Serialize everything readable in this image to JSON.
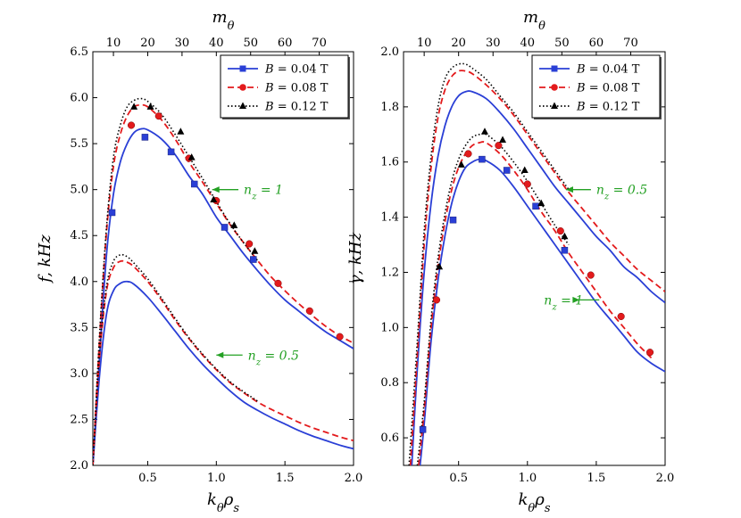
{
  "chart_data": [
    {
      "type": "line",
      "id": "left",
      "title": "",
      "xlabel": "k_θρ_s",
      "ylabel": "f, kHz",
      "top_xlabel": "m_θ",
      "xlim": [
        0.1,
        2.0
      ],
      "ylim": [
        2.0,
        6.5
      ],
      "xticks": [
        0.5,
        1.0,
        1.5,
        2.0
      ],
      "xtick_labels": [
        "0.5",
        "1.0",
        "1.5",
        "2.0"
      ],
      "yticks": [
        2.0,
        2.5,
        3.0,
        3.5,
        4.0,
        4.5,
        5.0,
        5.5,
        6.0,
        6.5
      ],
      "ytick_labels": [
        "2.0",
        "2.5",
        "3.0",
        "3.5",
        "4.0",
        "4.5",
        "5.0",
        "5.5",
        "6.0",
        "6.5"
      ],
      "top_xticks": [
        0.25,
        0.5,
        0.75,
        1.0,
        1.25,
        1.5,
        1.75
      ],
      "top_xtick_labels": [
        "10",
        "20",
        "30",
        "40",
        "50",
        "60",
        "70"
      ],
      "legend": {
        "position": "top-right",
        "entries": [
          {
            "label": "B = 0.04 T",
            "color": "#2a3fd6",
            "style": "solid",
            "marker": "square"
          },
          {
            "label": "B = 0.08 T",
            "color": "#e31a1c",
            "style": "dashed",
            "marker": "circle"
          },
          {
            "label": "B = 0.12 T",
            "color": "#000000",
            "style": "dotted",
            "marker": "triangle"
          }
        ]
      },
      "series": [
        {
          "name": "B = 0.04 T, nz = 1",
          "color": "#2a3fd6",
          "style": "solid",
          "x": [
            0.1,
            0.15,
            0.2,
            0.25,
            0.3,
            0.35,
            0.4,
            0.45,
            0.5,
            0.6,
            0.7,
            0.8,
            0.9,
            1.0,
            1.1,
            1.2,
            1.3,
            1.4,
            1.5,
            1.6,
            1.7,
            1.8,
            1.9,
            2.0
          ],
          "y": [
            2.0,
            3.2,
            4.3,
            4.95,
            5.3,
            5.5,
            5.62,
            5.66,
            5.65,
            5.55,
            5.38,
            5.15,
            4.95,
            4.7,
            4.5,
            4.3,
            4.12,
            3.95,
            3.8,
            3.68,
            3.56,
            3.45,
            3.36,
            3.27
          ]
        },
        {
          "name": "B = 0.08 T, nz = 1",
          "color": "#e31a1c",
          "style": "dashed",
          "x": [
            0.1,
            0.15,
            0.2,
            0.25,
            0.3,
            0.35,
            0.4,
            0.45,
            0.5,
            0.6,
            0.7,
            0.8,
            0.9,
            1.0,
            1.1,
            1.2,
            1.3,
            1.4,
            1.5,
            1.6,
            1.7,
            1.8,
            1.9,
            2.0
          ],
          "y": [
            2.0,
            3.4,
            4.55,
            5.25,
            5.6,
            5.8,
            5.9,
            5.92,
            5.9,
            5.76,
            5.55,
            5.3,
            5.08,
            4.85,
            4.62,
            4.42,
            4.23,
            4.05,
            3.9,
            3.76,
            3.63,
            3.51,
            3.41,
            3.33
          ]
        },
        {
          "name": "B = 0.12 T, nz = 1",
          "color": "#000000",
          "style": "dotted",
          "x": [
            0.1,
            0.15,
            0.2,
            0.25,
            0.3,
            0.35,
            0.4,
            0.45,
            0.5,
            0.6,
            0.7,
            0.8,
            0.9,
            1.0,
            1.1,
            1.2,
            1.3
          ],
          "y": [
            2.0,
            3.45,
            4.6,
            5.35,
            5.7,
            5.9,
            5.97,
            5.99,
            5.96,
            5.82,
            5.6,
            5.36,
            5.12,
            4.87,
            4.63,
            4.42,
            4.23
          ]
        },
        {
          "name": "B = 0.04 T, nz = 0.5",
          "color": "#2a3fd6",
          "style": "solid",
          "x": [
            0.1,
            0.15,
            0.2,
            0.25,
            0.3,
            0.35,
            0.4,
            0.5,
            0.6,
            0.7,
            0.8,
            0.9,
            1.0,
            1.1,
            1.2,
            1.3,
            1.4,
            1.5,
            1.6,
            1.7,
            1.8,
            1.9,
            2.0
          ],
          "y": [
            2.0,
            3.0,
            3.65,
            3.9,
            3.98,
            4.0,
            3.97,
            3.83,
            3.65,
            3.46,
            3.27,
            3.1,
            2.95,
            2.81,
            2.69,
            2.6,
            2.52,
            2.45,
            2.38,
            2.32,
            2.27,
            2.22,
            2.18
          ]
        },
        {
          "name": "B = 0.08 T, nz = 0.5",
          "color": "#e31a1c",
          "style": "dashed",
          "x": [
            0.1,
            0.15,
            0.2,
            0.25,
            0.3,
            0.35,
            0.4,
            0.5,
            0.6,
            0.7,
            0.8,
            0.9,
            1.0,
            1.1,
            1.2,
            1.3,
            1.4,
            1.5,
            1.6,
            1.7,
            1.8,
            1.9,
            2.0
          ],
          "y": [
            2.0,
            3.2,
            3.9,
            4.15,
            4.22,
            4.21,
            4.16,
            4.0,
            3.8,
            3.58,
            3.38,
            3.2,
            3.04,
            2.9,
            2.79,
            2.69,
            2.61,
            2.54,
            2.47,
            2.41,
            2.36,
            2.31,
            2.27
          ]
        },
        {
          "name": "B = 0.12 T, nz = 0.5",
          "color": "#000000",
          "style": "dotted",
          "x": [
            0.1,
            0.15,
            0.2,
            0.25,
            0.3,
            0.35,
            0.4,
            0.5,
            0.6,
            0.7,
            0.8,
            0.9,
            1.0,
            1.1,
            1.2,
            1.3
          ],
          "y": [
            2.0,
            3.25,
            3.95,
            4.22,
            4.29,
            4.27,
            4.2,
            4.03,
            3.82,
            3.6,
            3.39,
            3.21,
            3.05,
            2.91,
            2.8,
            2.7
          ]
        }
      ],
      "markers": [
        {
          "series": "B = 0.04 T",
          "marker": "square",
          "color": "#2a3fd6",
          "x": [
            0.24,
            0.48,
            0.67,
            0.84,
            1.06,
            1.27
          ],
          "y": [
            4.75,
            5.57,
            5.41,
            5.06,
            4.59,
            4.24
          ]
        },
        {
          "series": "B = 0.08 T",
          "marker": "circle",
          "color": "#e31a1c",
          "x": [
            0.38,
            0.58,
            0.8,
            1.0,
            1.24,
            1.45,
            1.68,
            1.9
          ],
          "y": [
            5.7,
            5.8,
            5.34,
            4.88,
            4.41,
            3.98,
            3.68,
            3.4
          ]
        },
        {
          "series": "B = 0.12 T",
          "marker": "triangle",
          "color": "#000000",
          "x": [
            0.4,
            0.52,
            0.74,
            0.82,
            0.98,
            1.13,
            1.28
          ],
          "y": [
            5.9,
            5.9,
            5.63,
            5.35,
            4.89,
            4.61,
            4.33
          ]
        }
      ],
      "annotations": [
        {
          "text": "n_z = 1",
          "color": "#23a023",
          "arrow_to": [
            0.97,
            5.0
          ],
          "text_at": [
            1.2,
            5.0
          ]
        },
        {
          "text": "n_z = 0.5",
          "color": "#23a023",
          "arrow_to": [
            1.0,
            3.2
          ],
          "text_at": [
            1.23,
            3.2
          ]
        }
      ]
    },
    {
      "type": "line",
      "id": "right",
      "title": "",
      "xlabel": "k_θρ_s",
      "ylabel": "γ, kHz",
      "top_xlabel": "m_θ",
      "xlim": [
        0.1,
        2.0
      ],
      "ylim": [
        0.5,
        2.0
      ],
      "xticks": [
        0.5,
        1.0,
        1.5,
        2.0
      ],
      "xtick_labels": [
        "0.5",
        "1.0",
        "1.5",
        "2.0"
      ],
      "yticks": [
        0.6,
        0.8,
        1.0,
        1.2,
        1.4,
        1.6,
        1.8,
        2.0
      ],
      "ytick_labels": [
        "0.6",
        "0.8",
        "1.0",
        "1.2",
        "1.4",
        "1.6",
        "1.8",
        "2.0"
      ],
      "top_xticks": [
        0.25,
        0.5,
        0.75,
        1.0,
        1.25,
        1.5,
        1.75
      ],
      "top_xtick_labels": [
        "10",
        "20",
        "30",
        "40",
        "50",
        "60",
        "70"
      ],
      "legend": {
        "position": "top-right",
        "entries": [
          {
            "label": "B = 0.04 T",
            "color": "#2a3fd6",
            "style": "solid",
            "marker": "square"
          },
          {
            "label": "B = 0.08 T",
            "color": "#e31a1c",
            "style": "dashed",
            "marker": "circle"
          },
          {
            "label": "B = 0.12 T",
            "color": "#000000",
            "style": "dotted",
            "marker": "triangle"
          }
        ]
      },
      "series": [
        {
          "name": "B = 0.04 T, nz = 0.5",
          "color": "#2a3fd6",
          "style": "solid",
          "x": [
            0.16,
            0.2,
            0.25,
            0.3,
            0.35,
            0.4,
            0.45,
            0.5,
            0.55,
            0.6,
            0.7,
            0.8,
            0.9,
            1.0,
            1.1,
            1.2,
            1.3,
            1.4,
            1.5,
            1.6,
            1.7,
            1.8,
            1.9,
            2.0
          ],
          "y": [
            0.5,
            0.85,
            1.2,
            1.45,
            1.62,
            1.73,
            1.8,
            1.84,
            1.855,
            1.855,
            1.83,
            1.78,
            1.72,
            1.65,
            1.58,
            1.51,
            1.45,
            1.39,
            1.33,
            1.28,
            1.22,
            1.18,
            1.13,
            1.09
          ]
        },
        {
          "name": "B = 0.08 T, nz = 0.5",
          "color": "#e31a1c",
          "style": "dashed",
          "x": [
            0.15,
            0.2,
            0.25,
            0.3,
            0.35,
            0.4,
            0.45,
            0.5,
            0.55,
            0.6,
            0.7,
            0.8,
            0.9,
            1.0,
            1.1,
            1.2,
            1.3,
            1.4,
            1.5,
            1.6,
            1.7,
            1.8,
            1.9,
            2.0
          ],
          "y": [
            0.5,
            0.9,
            1.3,
            1.58,
            1.76,
            1.86,
            1.91,
            1.93,
            1.93,
            1.92,
            1.88,
            1.83,
            1.77,
            1.7,
            1.63,
            1.56,
            1.49,
            1.43,
            1.37,
            1.31,
            1.26,
            1.21,
            1.17,
            1.13
          ]
        },
        {
          "name": "B = 0.12 T, nz = 0.5",
          "color": "#000000",
          "style": "dotted",
          "x": [
            0.14,
            0.2,
            0.25,
            0.3,
            0.35,
            0.4,
            0.45,
            0.5,
            0.55,
            0.6,
            0.7,
            0.8,
            0.9,
            1.0,
            1.1,
            1.2,
            1.3
          ],
          "y": [
            0.5,
            0.95,
            1.35,
            1.62,
            1.8,
            1.9,
            1.94,
            1.955,
            1.955,
            1.94,
            1.9,
            1.84,
            1.78,
            1.71,
            1.64,
            1.57,
            1.5
          ]
        },
        {
          "name": "B = 0.04 T, nz = 1",
          "color": "#2a3fd6",
          "style": "solid",
          "x": [
            0.22,
            0.25,
            0.3,
            0.35,
            0.4,
            0.45,
            0.5,
            0.55,
            0.6,
            0.65,
            0.7,
            0.8,
            0.9,
            1.0,
            1.1,
            1.2,
            1.3,
            1.4,
            1.5,
            1.6,
            1.7,
            1.8,
            1.9,
            2.0
          ],
          "y": [
            0.5,
            0.65,
            0.95,
            1.17,
            1.33,
            1.45,
            1.53,
            1.58,
            1.6,
            1.61,
            1.605,
            1.57,
            1.51,
            1.44,
            1.37,
            1.3,
            1.23,
            1.16,
            1.09,
            1.03,
            0.97,
            0.91,
            0.87,
            0.84
          ]
        },
        {
          "name": "B = 0.08 T, nz = 1",
          "color": "#e31a1c",
          "style": "dashed",
          "x": [
            0.21,
            0.25,
            0.3,
            0.35,
            0.4,
            0.45,
            0.5,
            0.55,
            0.6,
            0.65,
            0.7,
            0.8,
            0.9,
            1.0,
            1.1,
            1.2,
            1.3,
            1.4,
            1.5,
            1.6,
            1.7,
            1.8,
            1.9
          ],
          "y": [
            0.5,
            0.7,
            1.0,
            1.22,
            1.38,
            1.5,
            1.58,
            1.63,
            1.66,
            1.67,
            1.67,
            1.63,
            1.57,
            1.5,
            1.42,
            1.35,
            1.27,
            1.2,
            1.13,
            1.06,
            1.0,
            0.94,
            0.89
          ]
        },
        {
          "name": "B = 0.12 T, nz = 1",
          "color": "#000000",
          "style": "dotted",
          "x": [
            0.2,
            0.25,
            0.3,
            0.35,
            0.4,
            0.45,
            0.5,
            0.55,
            0.6,
            0.65,
            0.7,
            0.8,
            0.9,
            1.0,
            1.1,
            1.2,
            1.3
          ],
          "y": [
            0.5,
            0.73,
            1.03,
            1.25,
            1.41,
            1.53,
            1.61,
            1.66,
            1.69,
            1.7,
            1.7,
            1.66,
            1.6,
            1.53,
            1.45,
            1.37,
            1.3
          ]
        }
      ],
      "markers": [
        {
          "series": "B = 0.04 T",
          "marker": "square",
          "color": "#2a3fd6",
          "x": [
            0.24,
            0.46,
            0.67,
            0.85,
            1.06,
            1.27
          ],
          "y": [
            0.63,
            1.39,
            1.61,
            1.57,
            1.44,
            1.28
          ]
        },
        {
          "series": "B = 0.08 T",
          "marker": "circle",
          "color": "#e31a1c",
          "x": [
            0.34,
            0.57,
            0.79,
            1.0,
            1.24,
            1.46,
            1.68,
            1.89
          ],
          "y": [
            1.1,
            1.63,
            1.66,
            1.52,
            1.35,
            1.19,
            1.04,
            0.91
          ]
        },
        {
          "series": "B = 0.12 T, nz = 1",
          "marker": "triangle",
          "color": "#000000",
          "x": [
            0.36,
            0.52,
            0.69,
            0.82,
            0.98,
            1.1,
            1.27
          ],
          "y": [
            1.22,
            1.59,
            1.71,
            1.68,
            1.57,
            1.45,
            1.33
          ]
        }
      ],
      "annotations": [
        {
          "text": "n_z = 0.5",
          "color": "#23a023",
          "arrow_to": [
            1.28,
            1.5
          ],
          "text_at": [
            1.5,
            1.5
          ]
        },
        {
          "text": "n_z = 1",
          "color": "#23a023",
          "arrow_to": [
            1.38,
            1.1
          ],
          "text_at": [
            1.12,
            1.1
          ]
        }
      ]
    }
  ],
  "colors": {
    "blue": "#2a3fd6",
    "red": "#e31a1c",
    "black": "#000000",
    "annotation": "#23a023"
  }
}
